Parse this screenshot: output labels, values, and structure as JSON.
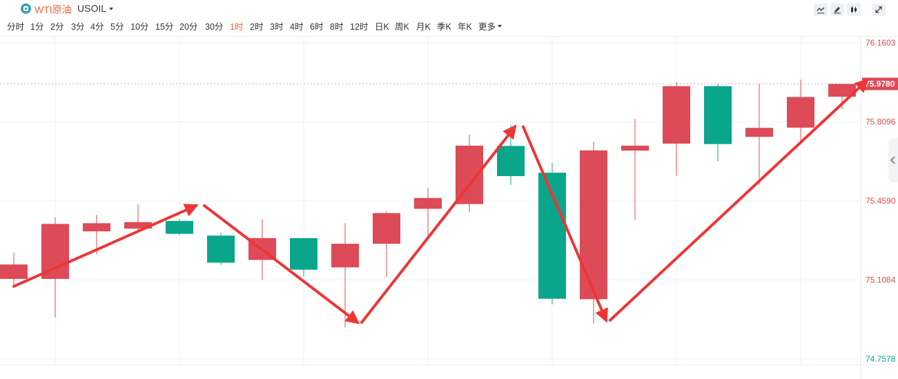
{
  "header": {
    "title": "WTI原油",
    "symbol": "USOIL",
    "tools": [
      "line-tool-icon",
      "pen-tool-icon",
      "candle-type-icon",
      "fullscreen-icon"
    ]
  },
  "periods": [
    "分时",
    "1分",
    "2分",
    "3分",
    "4分",
    "5分",
    "10分",
    "15分",
    "20分",
    "30分",
    "1时",
    "2时",
    "3时",
    "4时",
    "6时",
    "8时",
    "12时",
    "日K",
    "周K",
    "月K",
    "季K",
    "年K",
    "更多"
  ],
  "active_period": "1时",
  "colors": {
    "up": "#dc4b57",
    "down": "#0aa68c",
    "arrow": "#ee3535",
    "accent": "#e8663d",
    "grid": "#f0f2f5"
  },
  "chart_data": {
    "type": "candlestick",
    "ylim": [
      74.7578,
      76.1603
    ],
    "yticks": [
      "76.1603",
      "75.8096",
      "75.4590",
      "75.1084",
      "74.7578"
    ],
    "last_price": "75.9780",
    "last_price_value": 75.978,
    "candles": [
      {
        "open": 75.113,
        "high": 75.23,
        "low": 75.081,
        "close": 75.177
      },
      {
        "open": 75.113,
        "high": 75.386,
        "low": 74.942,
        "close": 75.357
      },
      {
        "open": 75.324,
        "high": 75.397,
        "low": 75.222,
        "close": 75.36
      },
      {
        "open": 75.336,
        "high": 75.444,
        "low": 75.321,
        "close": 75.365
      },
      {
        "open": 75.37,
        "high": 75.379,
        "low": 75.307,
        "close": 75.313
      },
      {
        "open": 75.305,
        "high": 75.318,
        "low": 75.176,
        "close": 75.185
      },
      {
        "open": 75.197,
        "high": 75.377,
        "low": 75.108,
        "close": 75.294
      },
      {
        "open": 75.294,
        "high": 75.294,
        "low": 75.124,
        "close": 75.154
      },
      {
        "open": 75.164,
        "high": 75.36,
        "low": 74.897,
        "close": 75.269
      },
      {
        "open": 75.269,
        "high": 75.413,
        "low": 75.123,
        "close": 75.405
      },
      {
        "open": 75.424,
        "high": 75.516,
        "low": 75.291,
        "close": 75.472
      },
      {
        "open": 75.445,
        "high": 75.753,
        "low": 75.408,
        "close": 75.704
      },
      {
        "open": 75.703,
        "high": 75.797,
        "low": 75.531,
        "close": 75.569
      },
      {
        "open": 75.584,
        "high": 75.628,
        "low": 75.0,
        "close": 75.025
      },
      {
        "open": 75.023,
        "high": 75.722,
        "low": 74.915,
        "close": 75.683
      },
      {
        "open": 75.682,
        "high": 75.822,
        "low": 75.375,
        "close": 75.704
      },
      {
        "open": 75.713,
        "high": 75.986,
        "low": 75.571,
        "close": 75.968
      },
      {
        "open": 75.968,
        "high": 75.978,
        "low": 75.635,
        "close": 75.711
      },
      {
        "open": 75.743,
        "high": 75.978,
        "low": 75.53,
        "close": 75.783
      },
      {
        "open": 75.784,
        "high": 75.997,
        "low": 75.714,
        "close": 75.92
      },
      {
        "open": 75.921,
        "high": 75.978,
        "low": 75.866,
        "close": 75.978
      }
    ],
    "arrows": [
      {
        "from": [
          0,
          75.08
        ],
        "to": [
          4.4,
          75.438
        ],
        "thick": true
      },
      {
        "from": [
          4.6,
          75.438
        ],
        "to": [
          8.3,
          74.92
        ],
        "thick": true
      },
      {
        "from": [
          8.4,
          74.92
        ],
        "to": [
          12.1,
          75.788
        ],
        "thick": true
      },
      {
        "from": [
          12.3,
          75.788
        ],
        "to": [
          14.3,
          74.93
        ],
        "thick": true
      },
      {
        "from": [
          14.4,
          74.93
        ],
        "to": [
          20.6,
          75.993
        ],
        "thick": true
      }
    ]
  }
}
